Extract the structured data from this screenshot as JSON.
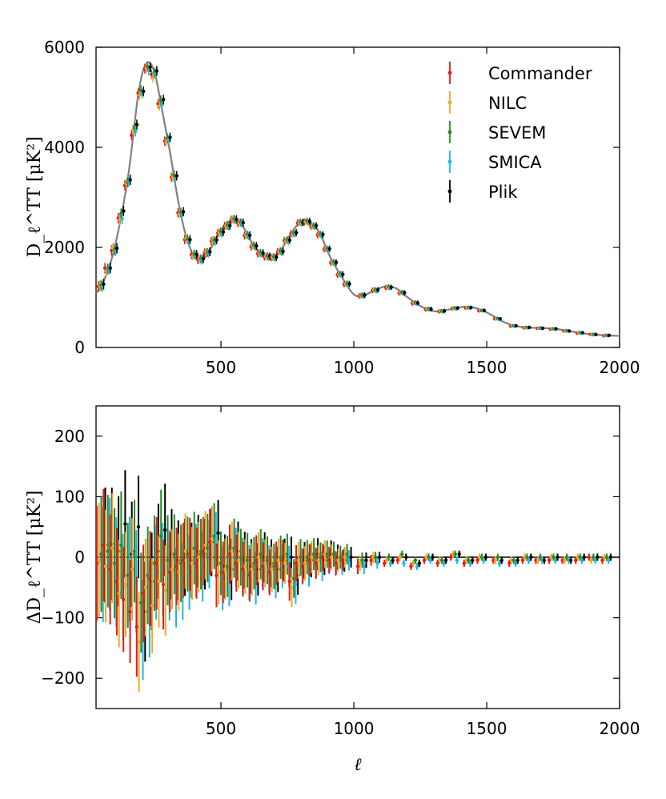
{
  "chart_data": [
    {
      "type": "scatter",
      "title": "",
      "ylabel": "D_ℓ^TT [μK²]",
      "xlabel": "",
      "xlim": [
        30,
        2000
      ],
      "ylim": [
        0,
        6000
      ],
      "xticks": [
        "500",
        "1000",
        "1500",
        "2000"
      ],
      "yticks": [
        "0",
        "2000",
        "4000",
        "6000"
      ],
      "model_curve": {
        "color": "#808080",
        "points": [
          [
            30,
            1080
          ],
          [
            60,
            1340
          ],
          [
            100,
            2000
          ],
          [
            150,
            3400
          ],
          [
            190,
            5100
          ],
          [
            220,
            5680
          ],
          [
            250,
            5500
          ],
          [
            280,
            4700
          ],
          [
            310,
            3850
          ],
          [
            340,
            2900
          ],
          [
            370,
            2200
          ],
          [
            400,
            1820
          ],
          [
            430,
            1750
          ],
          [
            460,
            1960
          ],
          [
            500,
            2350
          ],
          [
            540,
            2550
          ],
          [
            570,
            2530
          ],
          [
            610,
            2150
          ],
          [
            650,
            1870
          ],
          [
            690,
            1810
          ],
          [
            720,
            1900
          ],
          [
            760,
            2250
          ],
          [
            800,
            2520
          ],
          [
            830,
            2530
          ],
          [
            870,
            2300
          ],
          [
            910,
            1820
          ],
          [
            950,
            1450
          ],
          [
            1000,
            1060
          ],
          [
            1040,
            1050
          ],
          [
            1080,
            1150
          ],
          [
            1120,
            1220
          ],
          [
            1160,
            1180
          ],
          [
            1200,
            1010
          ],
          [
            1260,
            800
          ],
          [
            1310,
            720
          ],
          [
            1360,
            760
          ],
          [
            1410,
            810
          ],
          [
            1450,
            800
          ],
          [
            1500,
            700
          ],
          [
            1560,
            520
          ],
          [
            1600,
            440
          ],
          [
            1650,
            400
          ],
          [
            1700,
            390
          ],
          [
            1760,
            370
          ],
          [
            1820,
            320
          ],
          [
            1880,
            270
          ],
          [
            1940,
            245
          ],
          [
            2000,
            230
          ]
        ]
      },
      "series": [
        {
          "name": "Commander",
          "color": "#e41a1c",
          "offset": -9
        },
        {
          "name": "NILC",
          "color": "#f5a623",
          "offset": -4
        },
        {
          "name": "SEVEM",
          "color": "#228b22",
          "offset": 1
        },
        {
          "name": "SMICA",
          "color": "#1cb5ea",
          "offset": 5
        },
        {
          "name": "Plik",
          "color": "#000000",
          "offset": 10
        }
      ],
      "legend_position": "top-right"
    },
    {
      "type": "scatter",
      "title": "",
      "ylabel": "ΔD_ℓ^TT [μK²]",
      "xlabel": "ℓ",
      "xlim": [
        30,
        2000
      ],
      "ylim": [
        -250,
        250
      ],
      "xticks": [
        "500",
        "1000",
        "1500",
        "2000"
      ],
      "yticks": [
        "−200",
        "−100",
        "0",
        "100",
        "200"
      ],
      "zero_line": 0,
      "bins": [
        {
          "l": 48,
          "res": [
            -10,
            -5,
            5,
            -12,
            20
          ]
        },
        {
          "l": 73,
          "res": [
            20,
            -15,
            10,
            5,
            22
          ]
        },
        {
          "l": 98,
          "res": [
            -20,
            15,
            -10,
            -25,
            10
          ]
        },
        {
          "l": 123,
          "res": [
            -40,
            -60,
            20,
            -50,
            55
          ]
        },
        {
          "l": 148,
          "res": [
            -70,
            -45,
            -30,
            -20,
            5
          ]
        },
        {
          "l": 173,
          "res": [
            -90,
            -20,
            10,
            -40,
            50
          ]
        },
        {
          "l": 198,
          "res": [
            -115,
            -140,
            -75,
            -120,
            -90
          ]
        },
        {
          "l": 223,
          "res": [
            -60,
            -50,
            -30,
            -85,
            -40
          ]
        },
        {
          "l": 248,
          "res": [
            -35,
            -80,
            -10,
            -25,
            10
          ]
        },
        {
          "l": 273,
          "res": [
            -10,
            -40,
            35,
            -20,
            45
          ]
        },
        {
          "l": 298,
          "res": [
            -45,
            -55,
            -5,
            -30,
            5
          ]
        },
        {
          "l": 323,
          "res": [
            -25,
            -20,
            5,
            -50,
            -5
          ]
        },
        {
          "l": 348,
          "res": [
            -15,
            -25,
            -10,
            -40,
            0
          ]
        },
        {
          "l": 373,
          "res": [
            -5,
            10,
            5,
            -25,
            -5
          ]
        },
        {
          "l": 398,
          "res": [
            5,
            -10,
            15,
            -5,
            10
          ]
        },
        {
          "l": 423,
          "res": [
            -10,
            0,
            5,
            -15,
            5
          ]
        },
        {
          "l": 448,
          "res": [
            10,
            20,
            15,
            5,
            25
          ]
        },
        {
          "l": 473,
          "res": [
            25,
            30,
            35,
            20,
            40
          ]
        },
        {
          "l": 498,
          "res": [
            -30,
            -25,
            -10,
            -35,
            -15
          ]
        },
        {
          "l": 523,
          "res": [
            -25,
            -20,
            -15,
            -30,
            -20
          ]
        },
        {
          "l": 548,
          "res": [
            5,
            10,
            15,
            0,
            10
          ]
        },
        {
          "l": 573,
          "res": [
            -10,
            -5,
            0,
            -15,
            -5
          ]
        },
        {
          "l": 598,
          "res": [
            -20,
            -15,
            -5,
            -25,
            -15
          ]
        },
        {
          "l": 623,
          "res": [
            -30,
            -20,
            -10,
            -35,
            -20
          ]
        },
        {
          "l": 648,
          "res": [
            -5,
            0,
            5,
            -10,
            0
          ]
        },
        {
          "l": 673,
          "res": [
            -15,
            -10,
            -5,
            -20,
            -10
          ]
        },
        {
          "l": 698,
          "res": [
            -25,
            -20,
            -15,
            -30,
            -20
          ]
        },
        {
          "l": 723,
          "res": [
            -10,
            -5,
            0,
            -15,
            -5
          ]
        },
        {
          "l": 748,
          "res": [
            -5,
            -10,
            5,
            -15,
            0
          ]
        },
        {
          "l": 773,
          "res": [
            -40,
            -50,
            -35,
            -45,
            -30
          ]
        },
        {
          "l": 798,
          "res": [
            -10,
            -5,
            0,
            -15,
            -5
          ]
        },
        {
          "l": 823,
          "res": [
            -15,
            -10,
            0,
            -20,
            -5
          ]
        },
        {
          "l": 848,
          "res": [
            -5,
            0,
            5,
            -10,
            5
          ]
        },
        {
          "l": 873,
          "res": [
            -10,
            -5,
            0,
            -15,
            -5
          ]
        },
        {
          "l": 898,
          "res": [
            0,
            5,
            5,
            -5,
            5
          ]
        },
        {
          "l": 923,
          "res": [
            -5,
            0,
            5,
            -10,
            0
          ]
        },
        {
          "l": 948,
          "res": [
            -10,
            -5,
            0,
            -10,
            -5
          ]
        },
        {
          "l": 973,
          "res": [
            -5,
            0,
            5,
            -5,
            0
          ]
        },
        {
          "l": 1030,
          "res": [
            -15,
            -10,
            -5,
            -15,
            -5
          ]
        },
        {
          "l": 1080,
          "res": [
            -5,
            0,
            0,
            -10,
            0
          ]
        },
        {
          "l": 1130,
          "res": [
            -10,
            -5,
            0,
            -10,
            -5
          ]
        },
        {
          "l": 1180,
          "res": [
            -5,
            0,
            5,
            -10,
            0
          ]
        },
        {
          "l": 1230,
          "res": [
            -15,
            -10,
            -5,
            -15,
            -10
          ]
        },
        {
          "l": 1280,
          "res": [
            -5,
            0,
            0,
            -5,
            0
          ]
        },
        {
          "l": 1330,
          "res": [
            -10,
            -5,
            -5,
            -10,
            -5
          ]
        },
        {
          "l": 1380,
          "res": [
            0,
            5,
            5,
            -5,
            5
          ]
        },
        {
          "l": 1430,
          "res": [
            -10,
            -5,
            -5,
            -10,
            -5
          ]
        },
        {
          "l": 1480,
          "res": [
            -5,
            0,
            0,
            -5,
            0
          ]
        },
        {
          "l": 1540,
          "res": [
            -5,
            -5,
            0,
            -10,
            -5
          ]
        },
        {
          "l": 1600,
          "res": [
            -10,
            -5,
            -5,
            -10,
            -5
          ]
        },
        {
          "l": 1650,
          "res": [
            -5,
            0,
            0,
            -5,
            0
          ]
        },
        {
          "l": 1700,
          "res": [
            -5,
            -5,
            0,
            -5,
            -5
          ]
        },
        {
          "l": 1750,
          "res": [
            -5,
            0,
            0,
            -5,
            0
          ]
        },
        {
          "l": 1800,
          "res": [
            -5,
            -5,
            0,
            -5,
            -5
          ]
        },
        {
          "l": 1850,
          "res": [
            -5,
            0,
            0,
            -5,
            0
          ]
        },
        {
          "l": 1900,
          "res": [
            0,
            -5,
            0,
            -5,
            0
          ]
        },
        {
          "l": 1950,
          "res": [
            -5,
            0,
            0,
            -5,
            0
          ]
        }
      ]
    }
  ]
}
